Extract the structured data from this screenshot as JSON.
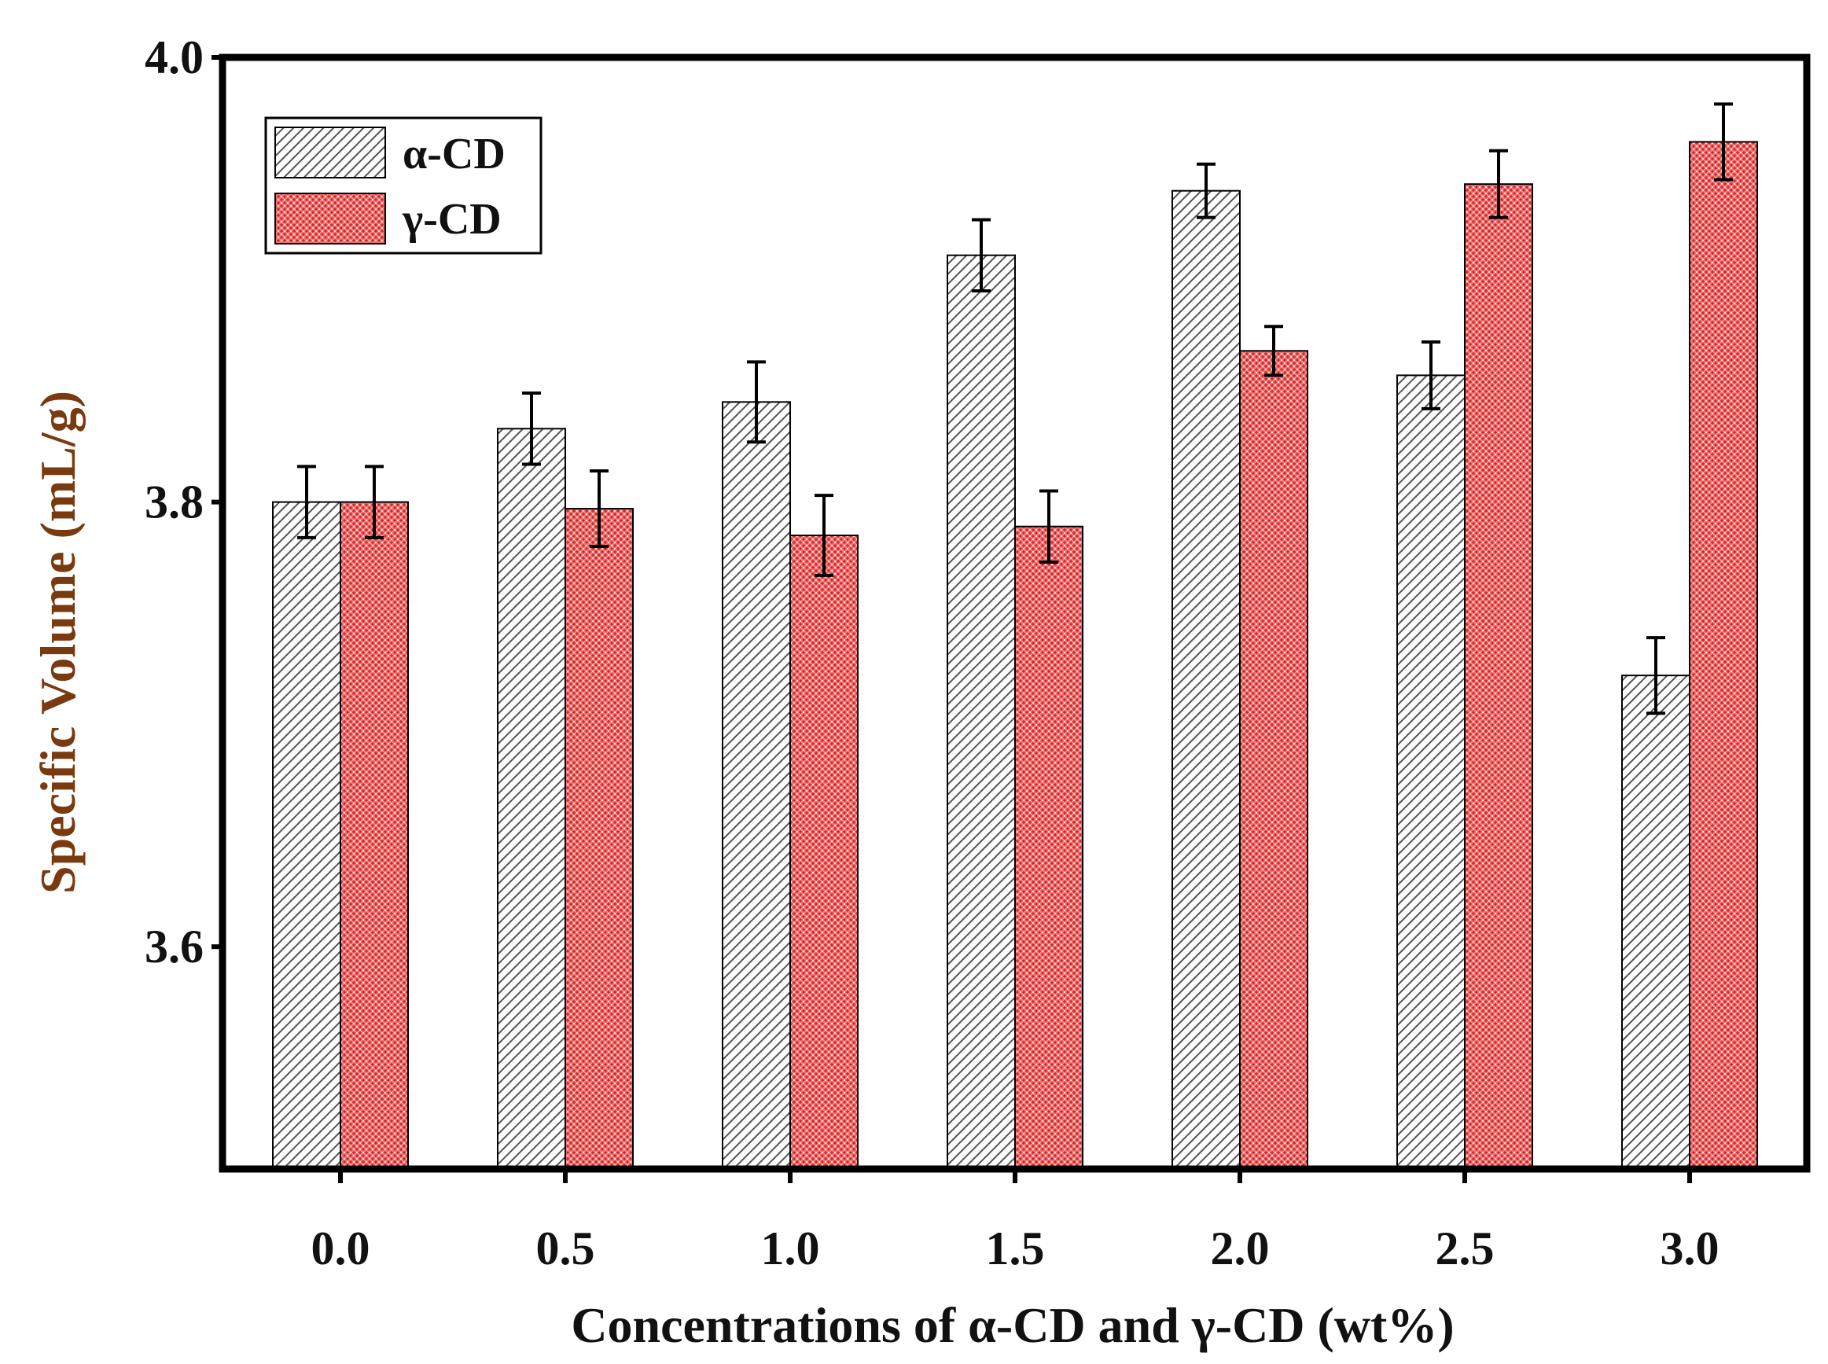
{
  "chart_data": {
    "type": "bar",
    "title": "",
    "xlabel": "Concentrations of α-CD and γ-CD (wt%)",
    "ylabel": "Specific Volume (mL/g)",
    "ylim": [
      3.5,
      4.0
    ],
    "yticks": [
      "3.6",
      "3.8",
      "4.0"
    ],
    "ytick_values": [
      3.6,
      3.8,
      4.0
    ],
    "categories": [
      "0.0",
      "0.5",
      "1.0",
      "1.5",
      "2.0",
      "2.5",
      "3.0"
    ],
    "series": [
      {
        "name": "α-CD",
        "pattern": "diagonal-hatch",
        "color": "#8c8c8c",
        "values": [
          3.8,
          3.833,
          3.845,
          3.911,
          3.94,
          3.857,
          3.722
        ],
        "errors": [
          0.016,
          0.016,
          0.018,
          0.016,
          0.012,
          0.015,
          0.017
        ]
      },
      {
        "name": "γ-CD",
        "pattern": "crosshatch",
        "color": "#e84a4a",
        "values": [
          3.8,
          3.797,
          3.785,
          3.789,
          3.868,
          3.943,
          3.962
        ],
        "errors": [
          0.016,
          0.017,
          0.018,
          0.016,
          0.011,
          0.015,
          0.017
        ]
      }
    ],
    "legend_position": "top-left",
    "axis_title_color": "#7a3a10"
  }
}
